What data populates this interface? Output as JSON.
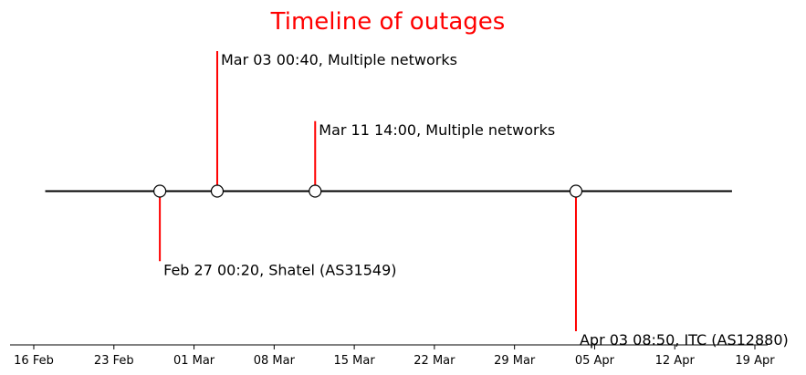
{
  "chart_data": {
    "type": "timeline",
    "title": "Timeline of outages",
    "colors": {
      "title": "#ff0000",
      "stem": "#ff0000",
      "baseline": "#000000",
      "marker_fill": "#ffffff",
      "marker_edge": "#000000"
    },
    "grid": false,
    "x_axis": {
      "range": [
        "2020-02-16",
        "2020-04-19"
      ],
      "baseline_range": [
        "2020-02-17",
        "2020-04-17"
      ],
      "ticks": [
        {
          "date": "2020-02-16",
          "label": "16 Feb"
        },
        {
          "date": "2020-02-23",
          "label": "23 Feb"
        },
        {
          "date": "2020-03-01",
          "label": "01 Mar"
        },
        {
          "date": "2020-03-08",
          "label": "08 Mar"
        },
        {
          "date": "2020-03-15",
          "label": "15 Mar"
        },
        {
          "date": "2020-03-22",
          "label": "22 Mar"
        },
        {
          "date": "2020-03-29",
          "label": "29 Mar"
        },
        {
          "date": "2020-04-05",
          "label": "05 Apr"
        },
        {
          "date": "2020-04-12",
          "label": "12 Apr"
        },
        {
          "date": "2020-04-19",
          "label": "19 Apr"
        }
      ]
    },
    "y_range": [
      -1.3,
      1.3
    ],
    "events": [
      {
        "date": "2020-02-27T00:20",
        "level": -0.5,
        "label": "Feb 27 00:20, Shatel (AS31549)"
      },
      {
        "date": "2020-03-03T00:40",
        "level": 1.0,
        "label": "Mar 03 00:40, Multiple networks"
      },
      {
        "date": "2020-03-11T14:00",
        "level": 0.5,
        "label": "Mar 11 14:00, Multiple networks"
      },
      {
        "date": "2020-04-03T08:50",
        "level": -1.0,
        "label": "Apr 03 08:50, ITC (AS12880)"
      }
    ]
  }
}
